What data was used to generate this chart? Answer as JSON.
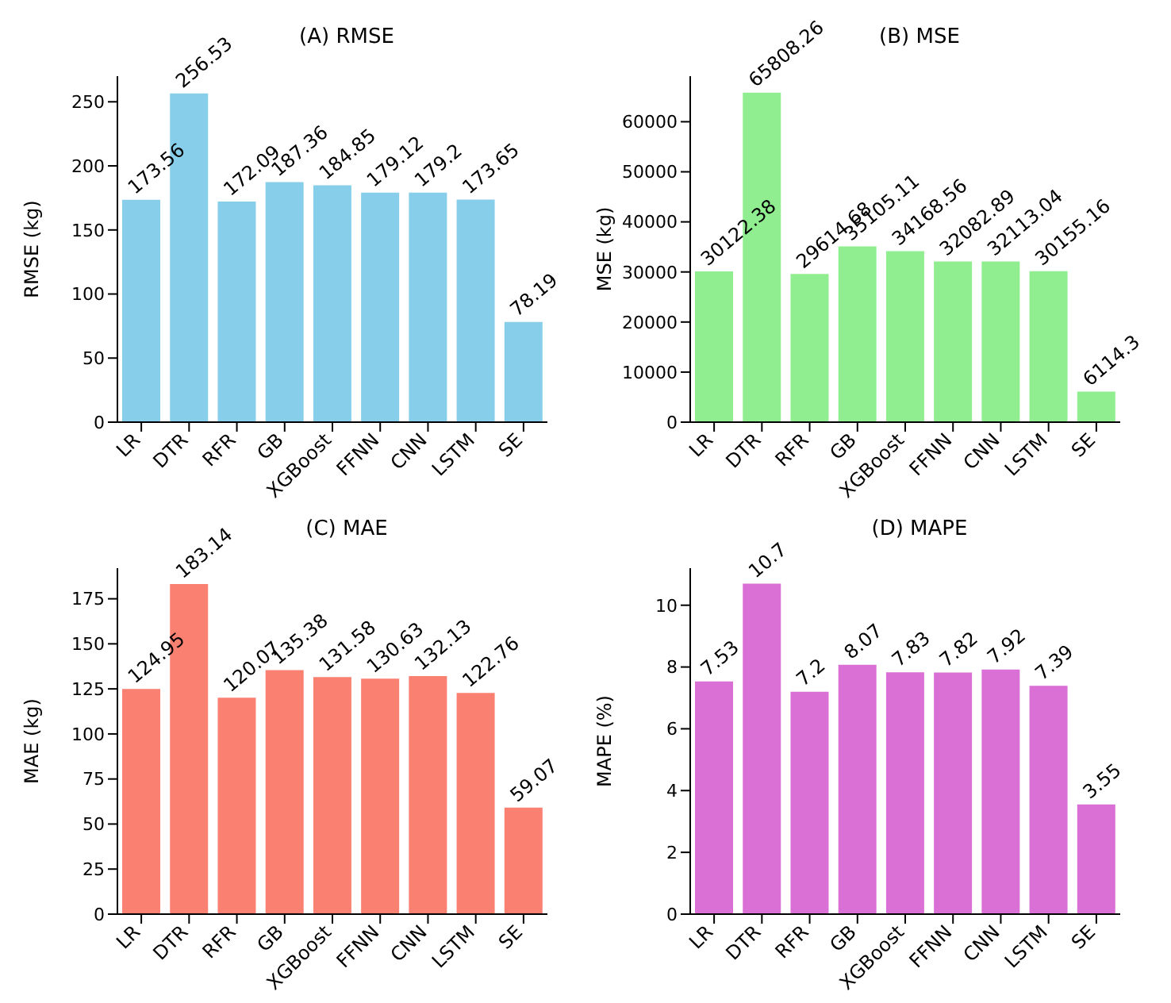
{
  "chart_data": [
    {
      "type": "bar",
      "title": "(A) RMSE",
      "ylabel": "RMSE (kg)",
      "categories": [
        "LR",
        "DTR",
        "RFR",
        "GB",
        "XGBoost",
        "FFNN",
        "CNN",
        "LSTM",
        "SE"
      ],
      "values": [
        173.56,
        256.53,
        172.09,
        187.36,
        184.85,
        179.12,
        179.2,
        173.65,
        78.19
      ],
      "color": "#87ceeb",
      "ylim": [
        0,
        270
      ],
      "yticks": [
        0,
        50,
        100,
        150,
        200,
        250
      ],
      "data_labels": true
    },
    {
      "type": "bar",
      "title": "(B) MSE",
      "ylabel": "MSE (kg)",
      "categories": [
        "LR",
        "DTR",
        "RFR",
        "GB",
        "XGBoost",
        "FFNN",
        "CNN",
        "LSTM",
        "SE"
      ],
      "values": [
        30122.38,
        65808.26,
        29614.68,
        35105.11,
        34168.56,
        32082.89,
        32113.04,
        30155.16,
        6114.3
      ],
      "color": "#90ee90",
      "ylim": [
        0,
        69100
      ],
      "yticks": [
        0,
        10000,
        20000,
        30000,
        40000,
        50000,
        60000
      ],
      "data_labels": true
    },
    {
      "type": "bar",
      "title": "(C) MAE",
      "ylabel": "MAE (kg)",
      "categories": [
        "LR",
        "DTR",
        "RFR",
        "GB",
        "XGBoost",
        "FFNN",
        "CNN",
        "LSTM",
        "SE"
      ],
      "values": [
        124.95,
        183.14,
        120.07,
        135.38,
        131.58,
        130.63,
        132.13,
        122.76,
        59.07
      ],
      "color": "#fa8072",
      "ylim": [
        0,
        192
      ],
      "yticks": [
        0,
        25,
        50,
        75,
        100,
        125,
        150,
        175
      ],
      "data_labels": true
    },
    {
      "type": "bar",
      "title": "(D) MAPE",
      "ylabel": "MAPE (%)",
      "categories": [
        "LR",
        "DTR",
        "RFR",
        "GB",
        "XGBoost",
        "FFNN",
        "CNN",
        "LSTM",
        "SE"
      ],
      "values": [
        7.53,
        10.7,
        7.2,
        8.07,
        7.83,
        7.82,
        7.92,
        7.39,
        3.55
      ],
      "color": "#da70d6",
      "ylim": [
        0,
        11.2
      ],
      "yticks": [
        0,
        2,
        4,
        6,
        8,
        10
      ],
      "data_labels": true
    }
  ]
}
